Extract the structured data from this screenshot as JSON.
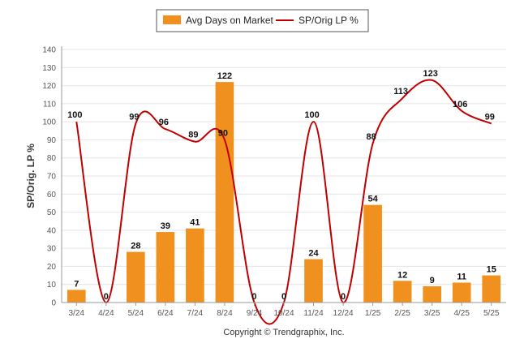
{
  "chart_data": {
    "type": "bar",
    "categories": [
      "3/24",
      "4/24",
      "5/24",
      "6/24",
      "7/24",
      "8/24",
      "9/24",
      "10/24",
      "11/24",
      "12/24",
      "1/25",
      "2/25",
      "3/25",
      "4/25",
      "5/25"
    ],
    "series": [
      {
        "name": "Avg Days on Market",
        "type": "bar",
        "color": "#f0901e",
        "values": [
          7,
          0,
          28,
          39,
          41,
          122,
          0,
          0,
          24,
          0,
          54,
          12,
          9,
          11,
          15
        ]
      },
      {
        "name": "SP/Orig LP %",
        "type": "line",
        "color": "#c00000",
        "values": [
          100,
          0,
          99,
          96,
          89,
          90,
          0,
          0,
          100,
          0,
          88,
          113,
          123,
          106,
          99
        ]
      }
    ],
    "ylabel": "SP/Orig. LP %",
    "ylim": [
      0,
      140
    ],
    "yticks": [
      0,
      10,
      20,
      30,
      40,
      50,
      60,
      70,
      80,
      90,
      100,
      110,
      120,
      130,
      140
    ],
    "grid": true,
    "legend": "top-center"
  },
  "footer": {
    "copyright": "Copyright © Trendgraphix, Inc."
  }
}
